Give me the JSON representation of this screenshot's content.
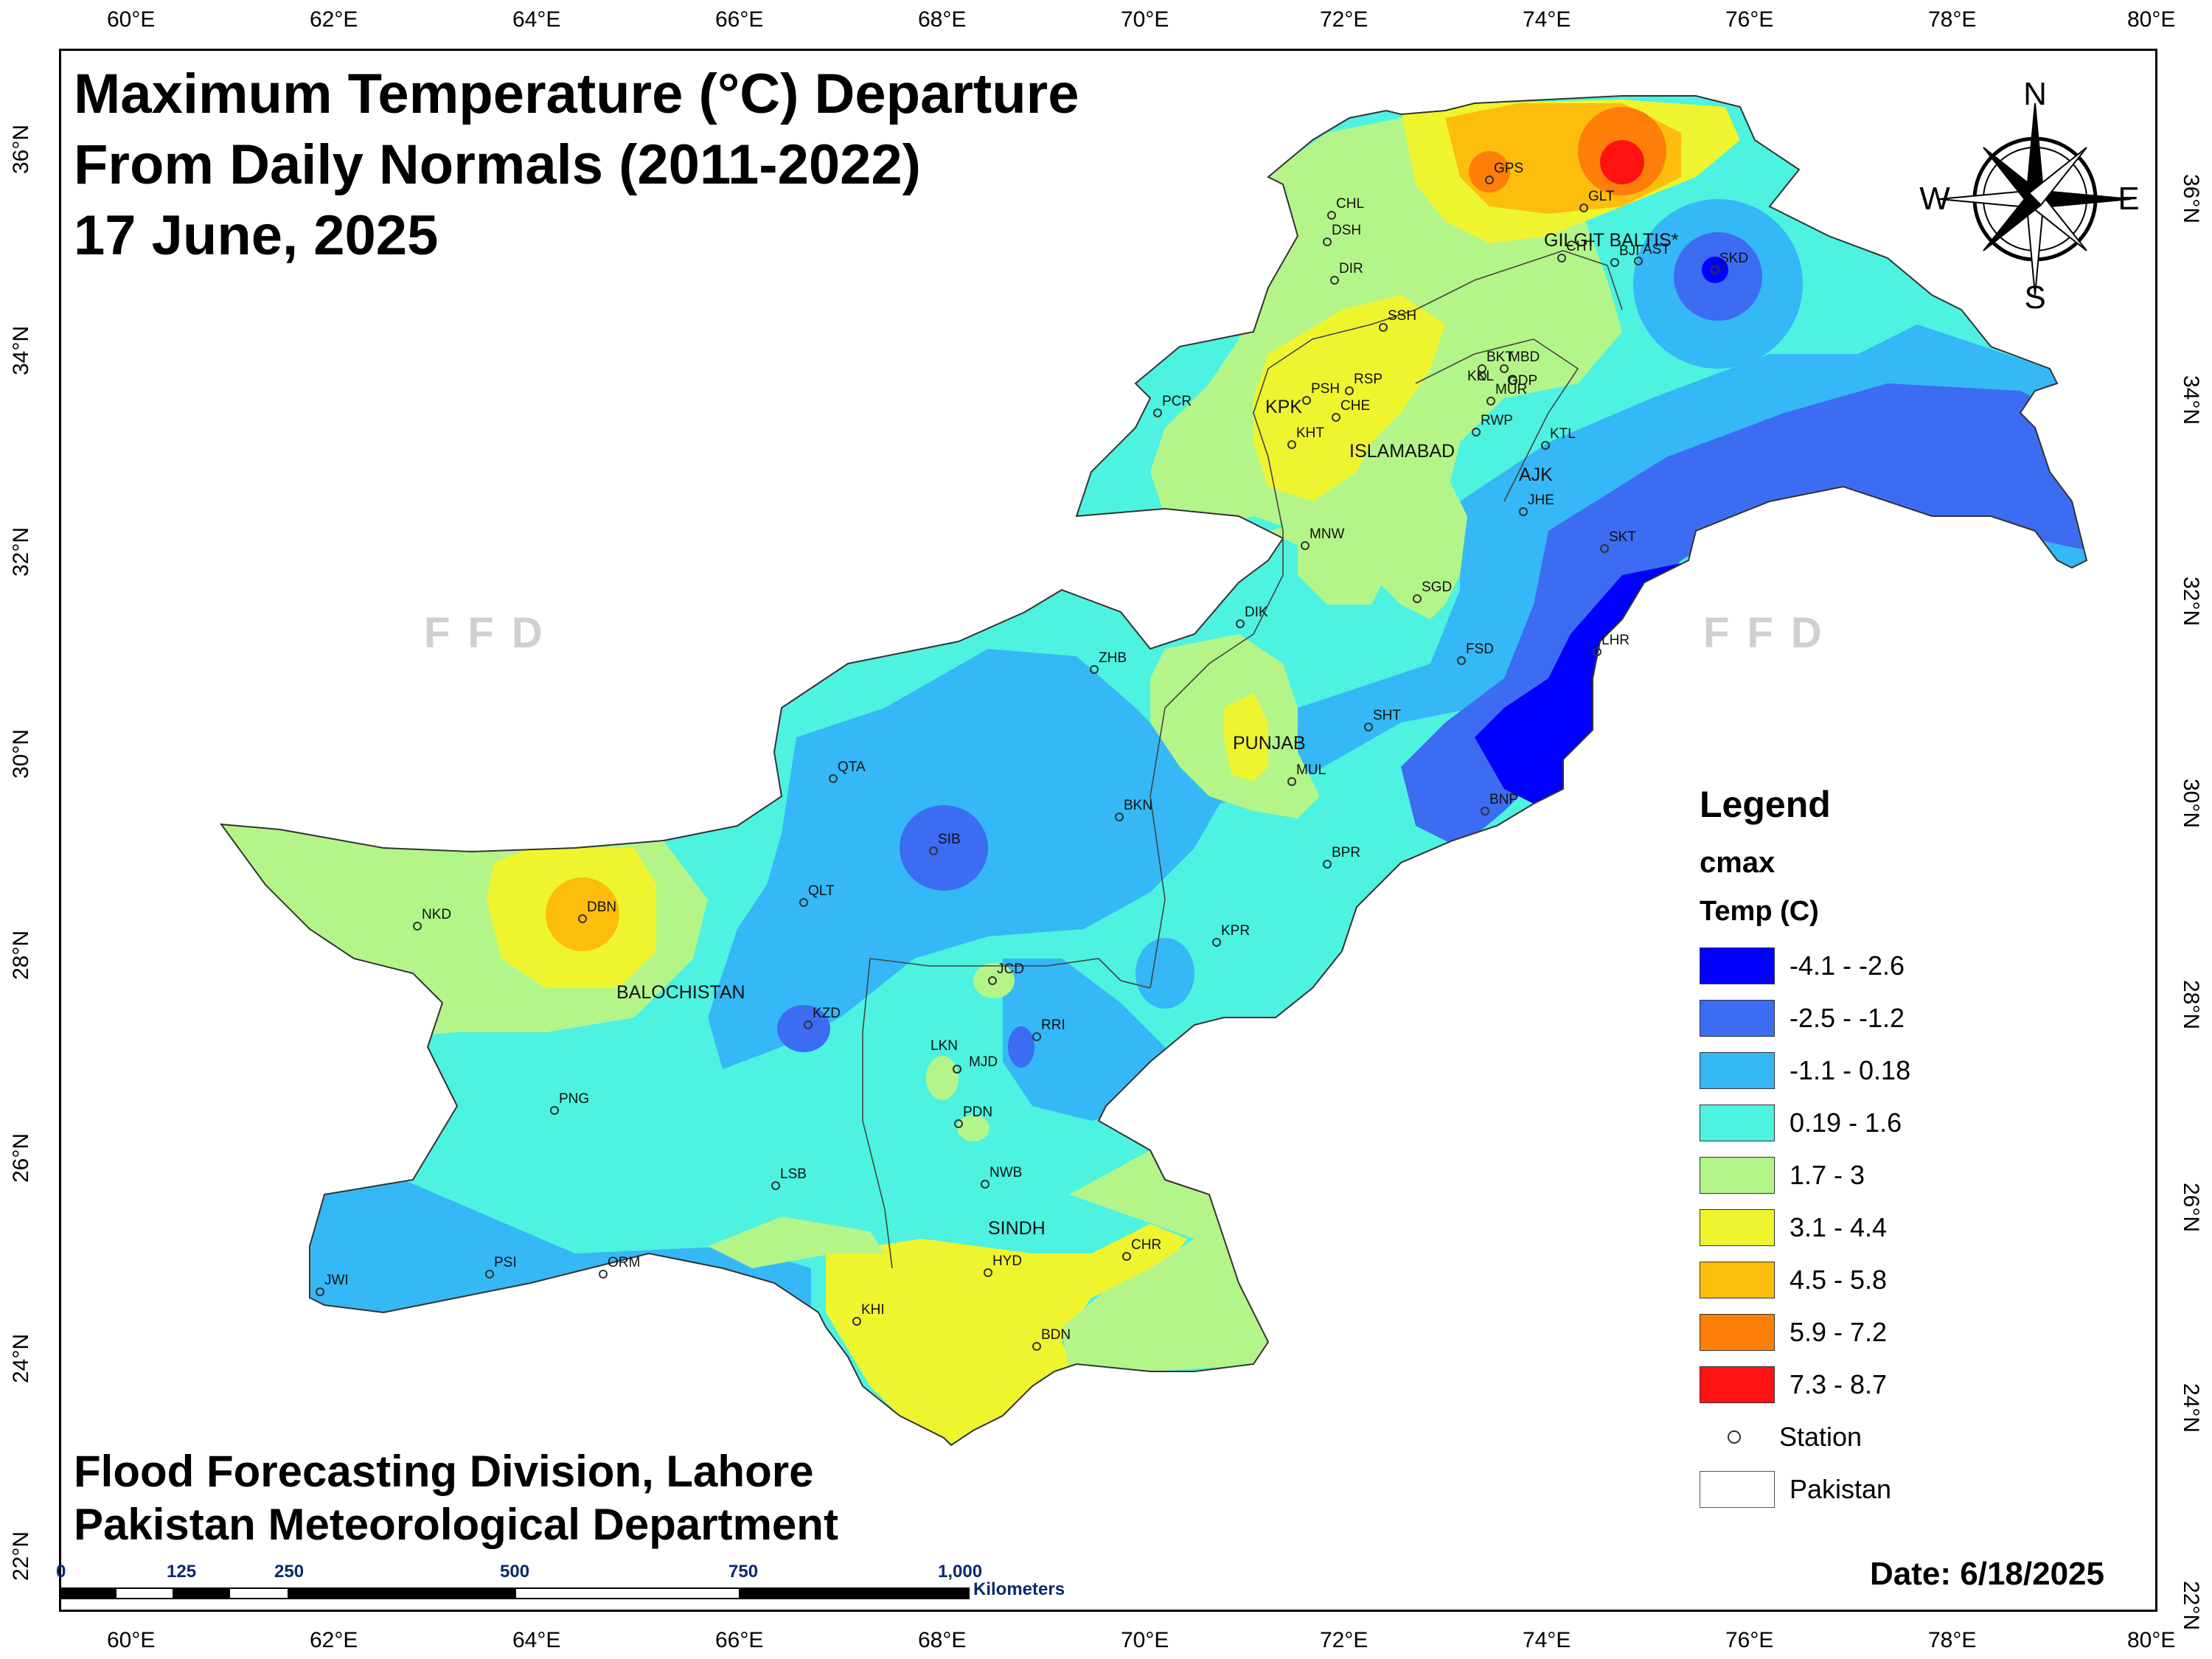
{
  "title": {
    "line1": "Maximum Temperature (°C) Departure",
    "line2": "From Daily Normals (2011-2022)",
    "line3": "17 June, 2025"
  },
  "axes": {
    "longitudes": [
      "60°E",
      "62°E",
      "64°E",
      "66°E",
      "68°E",
      "70°E",
      "72°E",
      "74°E",
      "76°E",
      "78°E",
      "80°E"
    ],
    "latitudes": [
      "36°N",
      "34°N",
      "32°N",
      "30°N",
      "28°N",
      "26°N",
      "24°N",
      "22°N"
    ]
  },
  "legend": {
    "title": "Legend",
    "field": "cmax",
    "unit": "Temp (C)",
    "classes": [
      {
        "label": "-4.1 - -2.6",
        "color": "#0000ff"
      },
      {
        "label": "-2.5 - -1.2",
        "color": "#3c6cf2"
      },
      {
        "label": "-1.1 - 0.18",
        "color": "#35b8f5"
      },
      {
        "label": "0.19 - 1.6",
        "color": "#4df2e0"
      },
      {
        "label": "1.7 - 3",
        "color": "#b4f58a"
      },
      {
        "label": "3.1 - 4.4",
        "color": "#eef52f"
      },
      {
        "label": "4.5 - 5.8",
        "color": "#fcbd0c"
      },
      {
        "label": "5.9 - 7.2",
        "color": "#fd7f0a"
      },
      {
        "label": "7.3 - 8.7",
        "color": "#ff1212"
      }
    ],
    "station_label": "Station",
    "boundary_label": "Pakistan"
  },
  "regions": [
    "KPK",
    "ISLAMABAD",
    "AJK",
    "GILGIT BALTIS*",
    "PUNJAB",
    "BALOCHISTAN",
    "SINDH"
  ],
  "stations": [
    "CHL",
    "DSH",
    "DIR",
    "GPS",
    "GLT",
    "CHT",
    "BJI",
    "AST",
    "SKD",
    "SSH",
    "BKT",
    "MBD",
    "KKL",
    "GDP",
    "MUR",
    "RSP",
    "PSH",
    "CHE",
    "KHT",
    "RWP",
    "KTL",
    "PCR",
    "JHE",
    "SKT",
    "MNW",
    "SGD",
    "DIK",
    "LHR",
    "FSD",
    "ZHB",
    "SHT",
    "MUL",
    "QTA",
    "BKN",
    "BNP",
    "SIB",
    "BPR",
    "QLT",
    "NKD",
    "DBN",
    "KPR",
    "JCD",
    "KZD",
    "RRI",
    "LKN",
    "MJD",
    "PNG",
    "PDN",
    "LSB",
    "NWB",
    "CHR",
    "HYD",
    "PSI",
    "JWI",
    "ORM",
    "KHI",
    "BDN"
  ],
  "watermark": "FFD",
  "compass": {
    "n": "N",
    "s": "S",
    "e": "E",
    "w": "W"
  },
  "scale": {
    "ticks": [
      "0",
      "125",
      "250",
      "500",
      "750",
      "1,000"
    ],
    "unit": "Kilometers"
  },
  "credits": {
    "line1": "Flood Forecasting Division, Lahore",
    "line2": "Pakistan Meteorological Department"
  },
  "date": "Date: 6/18/2025"
}
